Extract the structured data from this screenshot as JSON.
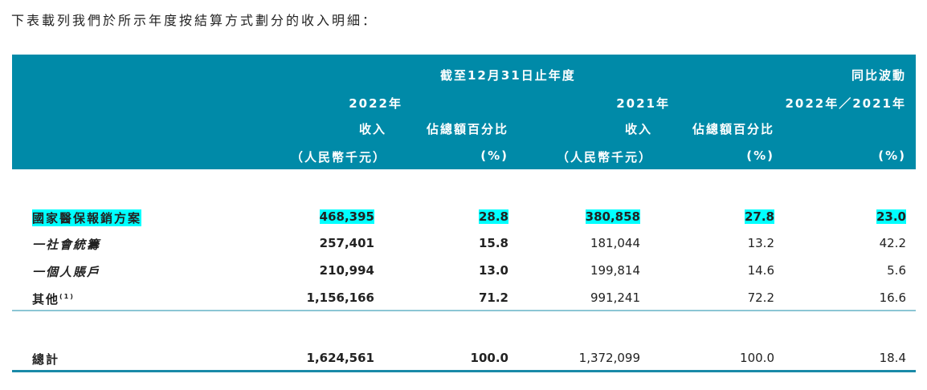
{
  "intro": "下表載列我們於所示年度按結算方式劃分的收入明細：",
  "header": {
    "period": "截至12月31日止年度",
    "change": "同比波動",
    "y2022": "2022年",
    "y2021": "2021年",
    "change_years": "2022年／2021年",
    "revenue": "收入",
    "pct_total": "佔總額百分比",
    "rmb": "（人民幣千元）",
    "pct": "(%)"
  },
  "rows": [
    {
      "label": "國家醫保報銷方案",
      "rev22": "468,395",
      "pct22": "28.8",
      "rev21": "380,858",
      "pct21": "27.8",
      "chg": "23.0",
      "highlight": true
    },
    {
      "label": "一社會統籌",
      "rev22": "257,401",
      "pct22": "15.8",
      "rev21": "181,044",
      "pct21": "13.2",
      "chg": "42.2"
    },
    {
      "label": "一個人賬戶",
      "rev22": "210,994",
      "pct22": "13.0",
      "rev21": "199,814",
      "pct21": "14.6",
      "chg": "5.6"
    },
    {
      "label": "其他",
      "note": "(1)",
      "rev22": "1,156,166",
      "pct22": "71.2",
      "rev21": "991,241",
      "pct21": "72.2",
      "chg": "16.6"
    }
  ],
  "total": {
    "label": "總計",
    "rev22": "1,624,561",
    "pct22": "100.0",
    "rev21": "1,372,099",
    "pct21": "100.0",
    "chg": "18.4"
  },
  "colors": {
    "header_bg": "#008aa8",
    "highlight": "#00ffff"
  }
}
